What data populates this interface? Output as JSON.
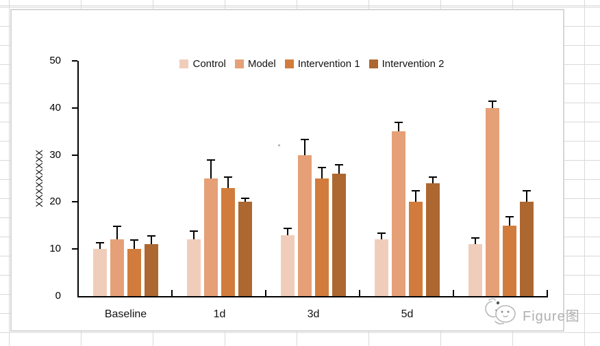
{
  "watermark": {
    "text": "Figure图"
  },
  "chart_data": {
    "type": "bar",
    "title": "",
    "xlabel": "",
    "ylabel": "XXXXXXXXX",
    "ylim": [
      0,
      50
    ],
    "yticks": [
      0,
      10,
      20,
      30,
      40,
      50
    ],
    "grid": false,
    "error_bars": true,
    "legend_position": "top-center",
    "categories": [
      "Baseline",
      "1d",
      "3d",
      "5d",
      "7d"
    ],
    "series": [
      {
        "name": "Control",
        "color": "#F0CDBB",
        "values": [
          10,
          12,
          13,
          12,
          11
        ],
        "errors": [
          1.5,
          2,
          1.5,
          1.5,
          1.5
        ]
      },
      {
        "name": "Model",
        "color": "#E5A078",
        "values": [
          12,
          25,
          30,
          35,
          40
        ],
        "errors": [
          3,
          4,
          3.5,
          2,
          1.5
        ]
      },
      {
        "name": "Intervention 1",
        "color": "#D17C3C",
        "values": [
          10,
          23,
          25,
          20,
          15
        ],
        "errors": [
          2,
          2.5,
          2.5,
          2.5,
          2
        ]
      },
      {
        "name": "Intervention 2",
        "color": "#AD6730",
        "values": [
          11,
          20,
          26,
          24,
          20
        ],
        "errors": [
          2,
          1,
          2,
          1.5,
          2.5
        ]
      }
    ]
  }
}
